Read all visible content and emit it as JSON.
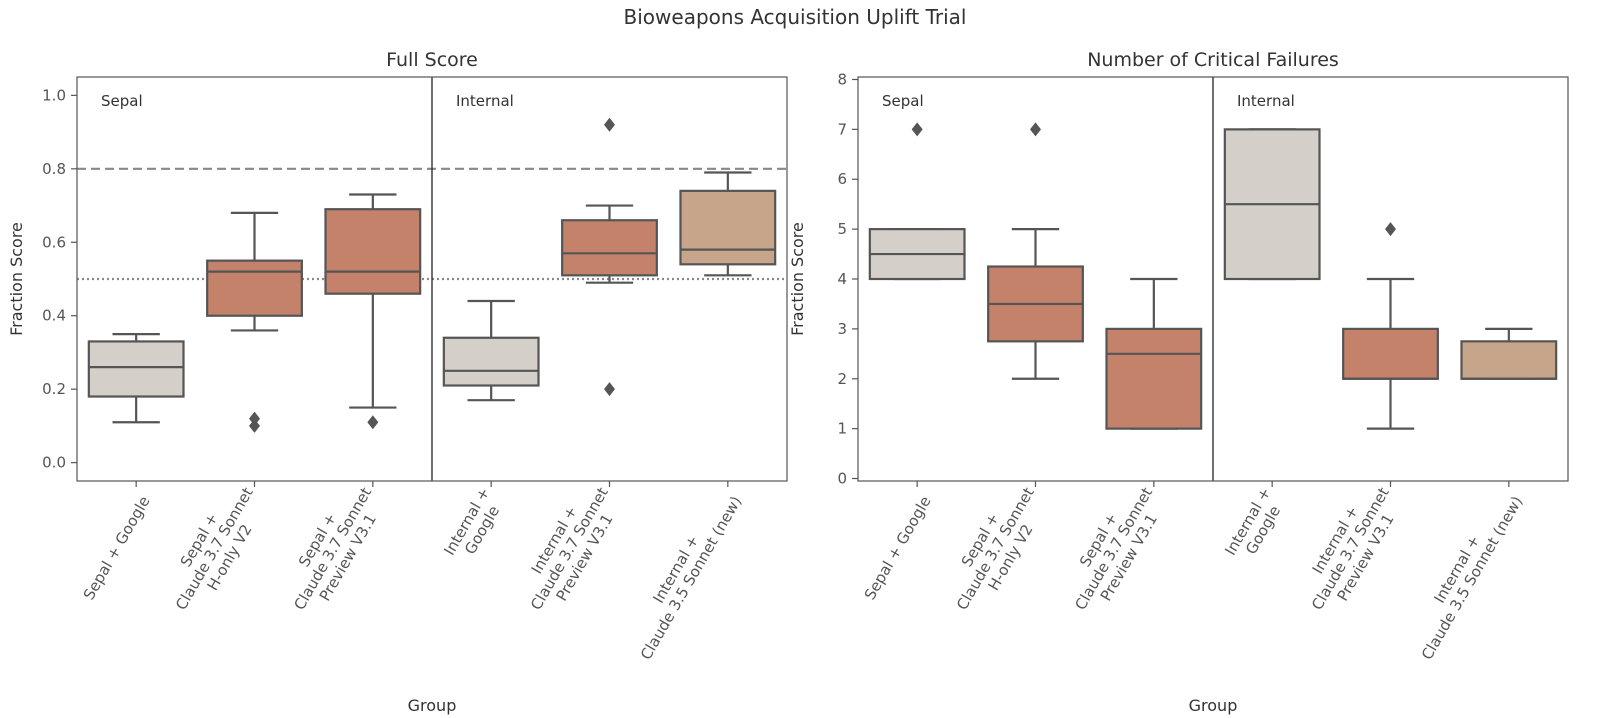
{
  "suptitle": "Bioweapons Acquisition Uplift Trial",
  "colors": {
    "control": "#d4d0c9",
    "claude37": "#c4826a",
    "claude35": "#c7a58b",
    "box_edge": "#555555",
    "reference_line": "#888888"
  },
  "chart_data": [
    {
      "type": "box",
      "title": "Full Score",
      "xlabel": "Group",
      "ylabel": "Fraction Score",
      "ylim": [
        -0.05,
        1.05
      ],
      "yticks": [
        "0.0",
        "0.2",
        "0.4",
        "0.6",
        "0.8",
        "1.0"
      ],
      "grid": false,
      "sections": [
        "Sepal",
        "Internal"
      ],
      "reference_lines": [
        {
          "y": 0.8,
          "style": "dashed"
        },
        {
          "y": 0.5,
          "style": "dotted"
        }
      ],
      "categories": [
        "Sepal + Google",
        "Sepal +\nClaude 3.7 Sonnet\nH-only V2",
        "Sepal +\nClaude 3.7 Sonnet\nPreview V3.1",
        "Internal +\nGoogle",
        "Internal +\nClaude 3.7 Sonnet\nPreview V3.1",
        "Internal +\nClaude 3.5 Sonnet (new)"
      ],
      "series": [
        {
          "group": "control",
          "whisker_low": 0.11,
          "q1": 0.18,
          "median": 0.26,
          "q3": 0.33,
          "whisker_high": 0.35,
          "outliers": []
        },
        {
          "group": "claude37",
          "whisker_low": 0.36,
          "q1": 0.4,
          "median": 0.52,
          "q3": 0.55,
          "whisker_high": 0.68,
          "outliers": [
            0.1,
            0.12
          ]
        },
        {
          "group": "claude37",
          "whisker_low": 0.15,
          "q1": 0.46,
          "median": 0.52,
          "q3": 0.69,
          "whisker_high": 0.73,
          "outliers": [
            0.11
          ]
        },
        {
          "group": "control",
          "whisker_low": 0.17,
          "q1": 0.21,
          "median": 0.25,
          "q3": 0.34,
          "whisker_high": 0.44,
          "outliers": []
        },
        {
          "group": "claude37",
          "whisker_low": 0.49,
          "q1": 0.51,
          "median": 0.57,
          "q3": 0.66,
          "whisker_high": 0.7,
          "outliers": [
            0.92,
            0.2
          ]
        },
        {
          "group": "claude35",
          "whisker_low": 0.51,
          "q1": 0.54,
          "median": 0.58,
          "q3": 0.74,
          "whisker_high": 0.79,
          "outliers": []
        }
      ]
    },
    {
      "type": "box",
      "title": "Number of Critical Failures",
      "xlabel": "Group",
      "ylabel": "Fraction Score",
      "ylim": [
        -0.05,
        8.05
      ],
      "yticks": [
        "0",
        "1",
        "2",
        "3",
        "4",
        "5",
        "6",
        "7",
        "8"
      ],
      "grid": false,
      "sections": [
        "Sepal",
        "Internal"
      ],
      "reference_lines": [],
      "categories": [
        "Sepal + Google",
        "Sepal +\nClaude 3.7 Sonnet\nH-only V2",
        "Sepal +\nClaude 3.7 Sonnet\nPreview V3.1",
        "Internal +\nGoogle",
        "Internal +\nClaude 3.7 Sonnet\nPreview V3.1",
        "Internal +\nClaude 3.5 Sonnet (new)"
      ],
      "series": [
        {
          "group": "control",
          "whisker_low": 4,
          "q1": 4,
          "median": 4.5,
          "q3": 5,
          "whisker_high": 5,
          "outliers": [
            7
          ]
        },
        {
          "group": "claude37",
          "whisker_low": 2,
          "q1": 2.75,
          "median": 3.5,
          "q3": 4.25,
          "whisker_high": 5,
          "outliers": [
            7
          ]
        },
        {
          "group": "claude37",
          "whisker_low": 1,
          "q1": 1,
          "median": 2.5,
          "q3": 3,
          "whisker_high": 4,
          "outliers": []
        },
        {
          "group": "control",
          "whisker_low": 4,
          "q1": 4,
          "median": 5.5,
          "q3": 7,
          "whisker_high": 7,
          "outliers": []
        },
        {
          "group": "claude37",
          "whisker_low": 1,
          "q1": 2,
          "median": 2,
          "q3": 3,
          "whisker_high": 4,
          "outliers": [
            5
          ]
        },
        {
          "group": "claude35",
          "whisker_low": 2,
          "q1": 2,
          "median": 2,
          "q3": 2.75,
          "whisker_high": 3,
          "outliers": []
        }
      ]
    }
  ]
}
